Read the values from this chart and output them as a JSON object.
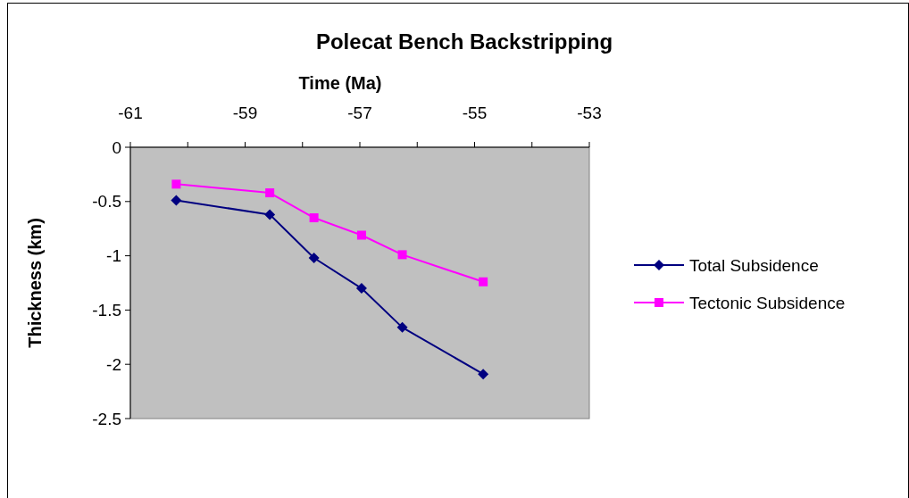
{
  "chart_data": {
    "type": "line",
    "title": "Polecat Bench Backstripping",
    "xlabel": "Time (Ma)",
    "ylabel": "Thickness (km)",
    "xlim": [
      -61,
      -53
    ],
    "xticks": [
      -61,
      {
        "value": -60,
        "label": null
      },
      -59,
      {
        "value": -58,
        "label": null
      },
      -57,
      {
        "value": -56,
        "label": null
      },
      -55,
      {
        "value": -54,
        "label": null
      },
      -53
    ],
    "ylim": [
      -2.5,
      0
    ],
    "yticks": [
      0,
      -0.5,
      -1,
      -1.5,
      -2,
      -2.5
    ],
    "grid": false,
    "legend": "right",
    "series": [
      {
        "name": "Total Subsidence",
        "color": "#000080",
        "marker": "diamond",
        "x": [
          -60.2,
          -58.57,
          -57.8,
          -56.97,
          -56.26,
          -54.85
        ],
        "values": [
          -0.49,
          -0.62,
          -1.02,
          -1.3,
          -1.66,
          -2.09
        ]
      },
      {
        "name": "Tectonic Subsidence",
        "color": "#ff00ff",
        "marker": "square",
        "x": [
          -60.2,
          -58.57,
          -57.8,
          -56.97,
          -56.26,
          -54.85
        ],
        "values": [
          -0.34,
          -0.42,
          -0.65,
          -0.81,
          -0.99,
          -1.24
        ]
      }
    ]
  }
}
